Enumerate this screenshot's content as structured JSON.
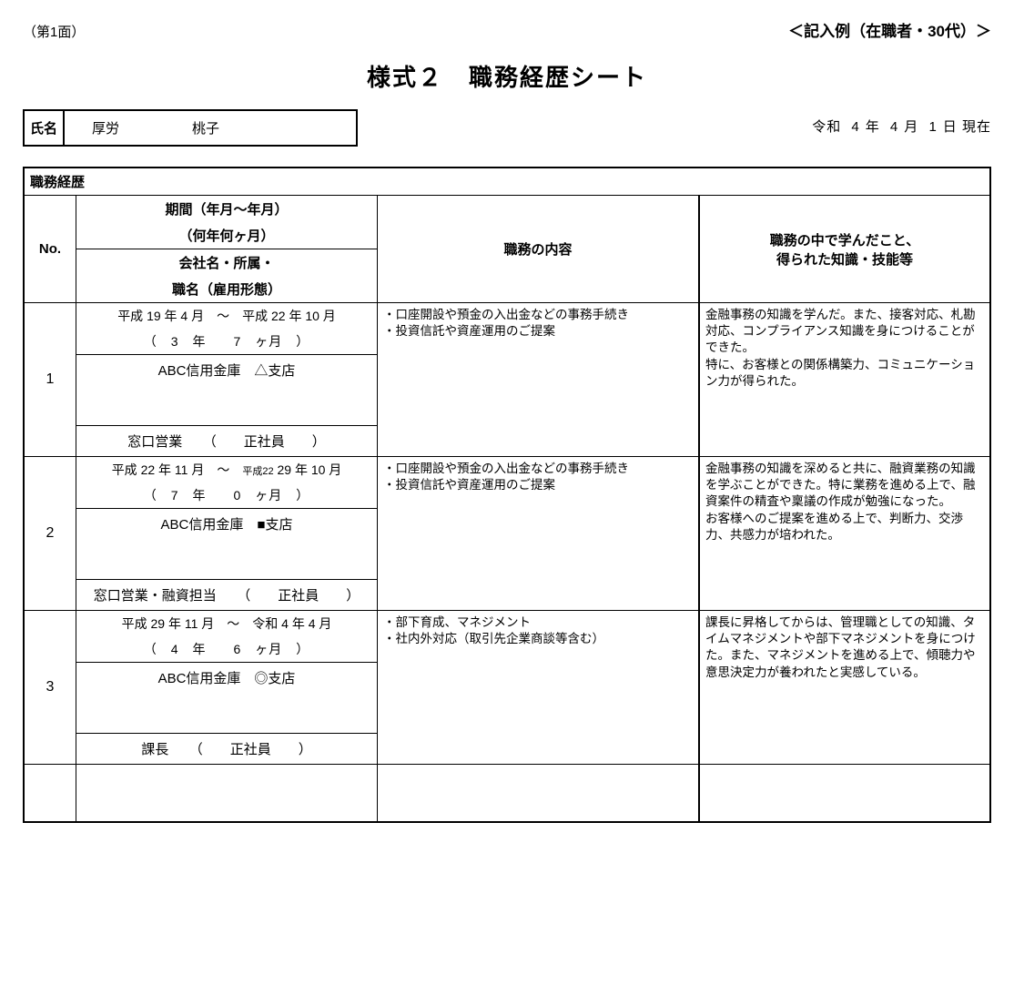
{
  "page_face": "（第1面）",
  "example_note": "＜記入例（在職者・30代）＞",
  "title": "様式２　職務経歴シート",
  "name_label": "氏名",
  "name_family": "厚労",
  "name_given": "桃子",
  "date": {
    "era": "令和",
    "y": "4",
    "m": "4",
    "d": "1",
    "suffix": "現在",
    "y_lbl": "年",
    "m_lbl": "月",
    "d_lbl": "日"
  },
  "section_title": "職務経歴",
  "headers": {
    "no": "No.",
    "period_line1": "期間（年月～年月）",
    "period_line2": "（何年何ヶ月）",
    "period_line3": "会社名・所属・",
    "period_line4": "職名（雇用形態）",
    "job": "職務の内容",
    "learn_line1": "職務の中で学んだこと、",
    "learn_line2": "得られた知識・技能等"
  },
  "entries": [
    {
      "no": "1",
      "period_from": "平成 19 年  4  月",
      "period_to": "平成 22 年 10 月",
      "from_era_small": false,
      "to_era_small": false,
      "duration_y": "3",
      "duration_m": "7",
      "company": "ABC信用金庫　△支店",
      "job_title": "窓口営業",
      "emp_type": "正社員",
      "job_bullets": [
        "・口座開設や預金の入出金などの事務手続き",
        "・投資信託や資産運用のご提案"
      ],
      "learn": "金融事務の知識を学んだ。また、接客対応、札勘対応、コンプライアンス知識を身につけることができた。\n特に、お客様との関係構築力、コミュニケーション力が得られた。"
    },
    {
      "no": "2",
      "period_from": "平成 22 年 11 月",
      "period_to": "平成22 29 年 10 月",
      "from_era_small": false,
      "to_era_small": true,
      "duration_y": "7",
      "duration_m": "0",
      "company": "ABC信用金庫　■支店",
      "job_title": "窓口営業・融資担当",
      "emp_type": "正社員",
      "job_bullets": [
        "・口座開設や預金の入出金などの事務手続き",
        "・投資信託や資産運用のご提案"
      ],
      "learn": "金融事務の知識を深めると共に、融資業務の知識を学ぶことができた。特に業務を進める上で、融資案件の精査や稟議の作成が勉強になった。\nお客様へのご提案を進める上で、判断力、交渉力、共感力が培われた。"
    },
    {
      "no": "3",
      "period_from": "平成 29 年 11 月",
      "period_to": "令和  4 年  4 月",
      "from_era_small": false,
      "to_era_small": false,
      "duration_y": "4",
      "duration_m": "6",
      "company": "ABC信用金庫　◎支店",
      "job_title": "課長",
      "emp_type": "正社員",
      "job_bullets": [
        "・部下育成、マネジメント",
        "・社内外対応（取引先企業商談等含む）"
      ],
      "learn": "課長に昇格してからは、管理職としての知識、タイムマネジメントや部下マネジメントを身につけた。また、マネジメントを進める上で、傾聴力や意思決定力が養われたと実感している。"
    }
  ],
  "labels": {
    "tilde": "～",
    "yr": "年",
    "mo": "月",
    "months": "ヶ月",
    "paren_open": "（",
    "paren_close": "）"
  }
}
